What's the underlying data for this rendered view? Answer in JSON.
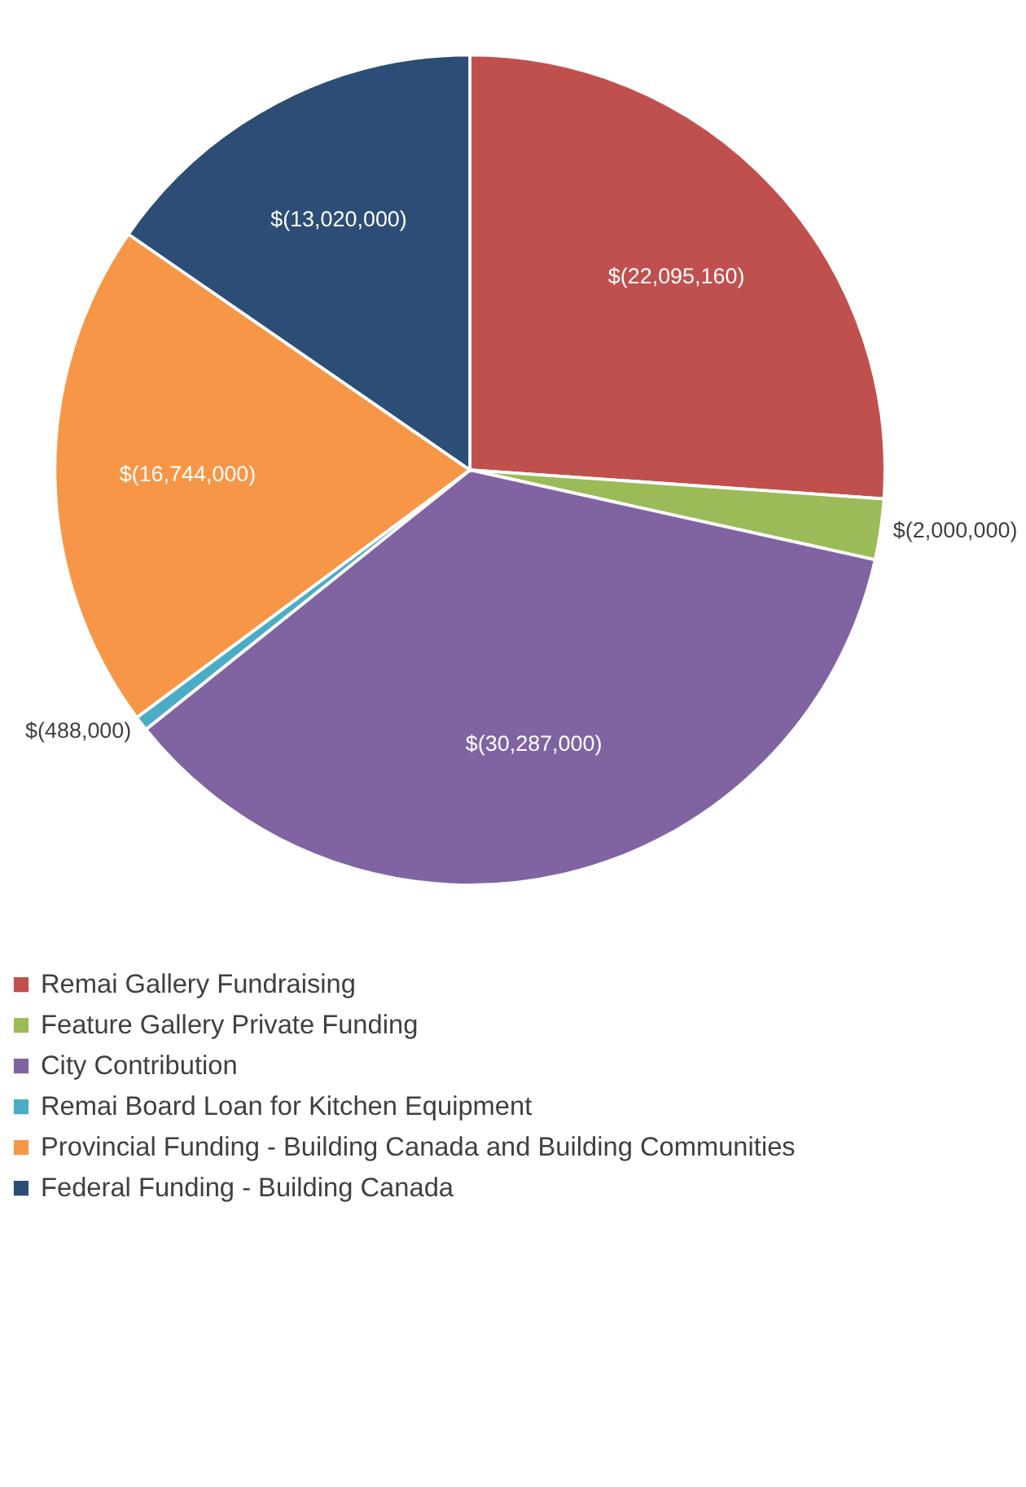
{
  "chart_data": {
    "type": "pie",
    "categories": [
      "Remai Gallery Fundraising",
      "Feature Gallery Private Funding",
      "City Contribution",
      "Remai Board Loan for Kitchen Equipment",
      "Provincial Funding - Building Canada and Building Communities",
      "Federal Funding - Building Canada"
    ],
    "values": [
      22095160,
      2000000,
      30287000,
      488000,
      16744000,
      13020000
    ],
    "colors": [
      "#c0504d",
      "#9bbb59",
      "#8064a2",
      "#4bacc6",
      "#f79646",
      "#2c4d75"
    ],
    "value_labels": [
      "$(22,095,160)",
      "$(2,000,000)",
      "$(30,287,000)",
      "$(488,000)",
      "$(16,744,000)",
      "$(13,020,000)"
    ],
    "legend": "bottom"
  }
}
